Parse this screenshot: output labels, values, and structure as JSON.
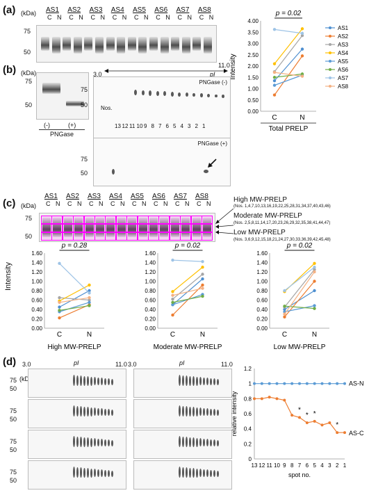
{
  "panels": {
    "a": {
      "label": "(a)",
      "kda_label": "(kDa)",
      "mw_markers": [
        "75",
        "50"
      ],
      "samples": [
        "AS1",
        "AS2",
        "AS3",
        "AS4",
        "AS5",
        "AS6",
        "AS7",
        "AS8"
      ],
      "lane_labels": [
        "C",
        "N"
      ],
      "chart_title": "p = 0.02",
      "chart_xlabel": "Total PRELP",
      "chart_ylabel": "Intensity"
    },
    "b": {
      "label": "(b)",
      "kda_label": "(kDa)",
      "mw_markers": [
        "75",
        "50"
      ],
      "pngase_labels": [
        "(-)",
        "(+)"
      ],
      "pngase_title": "PNGase",
      "pi_label": "pI",
      "pi_range": [
        "3.0",
        "11.0"
      ],
      "top_tag": "PNGase (-)",
      "bottom_tag": "PNGase (+)",
      "nos_label": "Nos.",
      "spot_numbers": [
        "13",
        "12",
        "11",
        "10",
        "9",
        "8",
        "7",
        "6",
        "5",
        "4",
        "3",
        "2",
        "1"
      ]
    },
    "c": {
      "label": "(c)",
      "kda_label": "(kDa)",
      "mw_markers": [
        "75",
        "50"
      ],
      "high_title": "High MW-PRELP",
      "high_nos": "(Nos. 1,4,7,10,13,16,19,22,25,28,31,34,37,40,43,46)",
      "mod_title": "Moderate MW-PRELP",
      "mod_nos": "(Nos. 2,5,8,11,14,17,20,23,26,29,32,35,38,41,44,47)",
      "low_title": "Low MW-PRELP",
      "low_nos": "(Nos. 3,6,9,12,15,18,21,24,27,30,33,36,39,42,45,48)",
      "ylabel": "Intensity",
      "charts": [
        {
          "p": "p = 0.28",
          "xlabel": "High MW-PRELP"
        },
        {
          "p": "p = 0.02",
          "xlabel": "Moderate MW-PRELP"
        },
        {
          "p": "p = 0.02",
          "xlabel": "Low MW-PRELP"
        }
      ]
    },
    "d": {
      "label": "(d)",
      "kda_label": "(kDa)",
      "mw_markers": [
        "75",
        "50"
      ],
      "pi_label": "pI",
      "pi_range": [
        "3.0",
        "11.0"
      ],
      "ylabel": "relative intensity",
      "xlabel": "spot no.",
      "series_n": "AS-N",
      "series_c": "AS-C"
    }
  },
  "colors": {
    "AS1": "#4e8fd0",
    "AS2": "#ed7d31",
    "AS3": "#a5a5a5",
    "AS4": "#ffc000",
    "AS5": "#5b9bd5",
    "AS6": "#70ad47",
    "AS7": "#9dc3e6",
    "AS8": "#f4b183",
    "highlight": "#ff00ff"
  },
  "chart_data": [
    {
      "type": "line",
      "title": "p = 0.02",
      "xlabel": "Total PRELP",
      "ylabel": "Intensity",
      "categories": [
        "C",
        "N"
      ],
      "ylim": [
        0,
        4.0
      ],
      "yticks": [
        "0.00",
        "0.50",
        "1.00",
        "1.50",
        "2.00",
        "2.50",
        "3.00",
        "3.50",
        "4.00"
      ],
      "series": [
        {
          "name": "AS1",
          "values": [
            1.35,
            2.75
          ]
        },
        {
          "name": "AS2",
          "values": [
            0.72,
            2.45
          ]
        },
        {
          "name": "AS3",
          "values": [
            1.75,
            3.35
          ]
        },
        {
          "name": "AS4",
          "values": [
            2.1,
            3.65
          ]
        },
        {
          "name": "AS5",
          "values": [
            1.15,
            1.6
          ]
        },
        {
          "name": "AS6",
          "values": [
            1.5,
            1.65
          ]
        },
        {
          "name": "AS7",
          "values": [
            3.62,
            3.45
          ]
        },
        {
          "name": "AS8",
          "values": [
            1.72,
            1.55
          ]
        }
      ]
    },
    {
      "type": "line",
      "title": "p = 0.28",
      "xlabel": "High MW-PRELP",
      "ylabel": "Intensity",
      "categories": [
        "C",
        "N"
      ],
      "ylim": [
        0,
        1.6
      ],
      "yticks": [
        "0.00",
        "0.20",
        "0.40",
        "0.60",
        "0.80",
        "1.00",
        "1.20",
        "1.40",
        "1.60"
      ],
      "series": [
        {
          "name": "AS1",
          "values": [
            0.45,
            0.8
          ]
        },
        {
          "name": "AS2",
          "values": [
            0.22,
            0.5
          ]
        },
        {
          "name": "AS3",
          "values": [
            0.65,
            0.6
          ]
        },
        {
          "name": "AS4",
          "values": [
            0.58,
            0.92
          ]
        },
        {
          "name": "AS5",
          "values": [
            0.35,
            0.55
          ]
        },
        {
          "name": "AS6",
          "values": [
            0.38,
            0.48
          ]
        },
        {
          "name": "AS7",
          "values": [
            1.38,
            0.75
          ]
        },
        {
          "name": "AS8",
          "values": [
            0.55,
            0.65
          ]
        }
      ]
    },
    {
      "type": "line",
      "title": "p = 0.02",
      "xlabel": "Moderate MW-PRELP",
      "ylabel": "Intensity",
      "categories": [
        "C",
        "N"
      ],
      "ylim": [
        0,
        1.6
      ],
      "yticks": [
        "0.00",
        "0.20",
        "0.40",
        "0.60",
        "0.80",
        "1.00",
        "1.20",
        "1.40",
        "1.60"
      ],
      "series": [
        {
          "name": "AS1",
          "values": [
            0.5,
            1.05
          ]
        },
        {
          "name": "AS2",
          "values": [
            0.28,
            0.92
          ]
        },
        {
          "name": "AS3",
          "values": [
            0.62,
            1.15
          ]
        },
        {
          "name": "AS4",
          "values": [
            0.78,
            1.3
          ]
        },
        {
          "name": "AS5",
          "values": [
            0.5,
            0.72
          ]
        },
        {
          "name": "AS6",
          "values": [
            0.55,
            0.68
          ]
        },
        {
          "name": "AS7",
          "values": [
            1.45,
            1.42
          ]
        },
        {
          "name": "AS8",
          "values": [
            0.7,
            0.85
          ]
        }
      ]
    },
    {
      "type": "line",
      "title": "p = 0.02",
      "xlabel": "Low MW-PRELP",
      "ylabel": "Intensity",
      "categories": [
        "C",
        "N"
      ],
      "ylim": [
        0,
        1.6
      ],
      "yticks": [
        "0.00",
        "0.20",
        "0.40",
        "0.60",
        "0.80",
        "1.00",
        "1.20",
        "1.40",
        "1.60"
      ],
      "series": [
        {
          "name": "AS1",
          "values": [
            0.4,
            0.8
          ]
        },
        {
          "name": "AS2",
          "values": [
            0.24,
            1.0
          ]
        },
        {
          "name": "AS3",
          "values": [
            0.45,
            1.25
          ]
        },
        {
          "name": "AS4",
          "values": [
            0.78,
            1.38
          ]
        },
        {
          "name": "AS5",
          "values": [
            0.35,
            0.48
          ]
        },
        {
          "name": "AS6",
          "values": [
            0.47,
            0.42
          ]
        },
        {
          "name": "AS7",
          "values": [
            0.8,
            1.3
          ]
        },
        {
          "name": "AS8",
          "values": [
            0.3,
            1.2
          ]
        }
      ]
    },
    {
      "type": "line",
      "xlabel": "spot no.",
      "ylabel": "relative intensity",
      "categories": [
        "13",
        "12",
        "11",
        "10",
        "9",
        "8",
        "7",
        "6",
        "5",
        "4",
        "3",
        "2",
        "1"
      ],
      "ylim": [
        0,
        1.2
      ],
      "yticks": [
        "0",
        "0.2",
        "0.4",
        "0.6",
        "0.8",
        "1",
        "1.2"
      ],
      "series": [
        {
          "name": "AS-N",
          "values": [
            1,
            1,
            1,
            1,
            1,
            1,
            1,
            1,
            1,
            1,
            1,
            1,
            1
          ]
        },
        {
          "name": "AS-C",
          "values": [
            0.8,
            0.8,
            0.82,
            0.8,
            0.78,
            0.58,
            0.55,
            0.48,
            0.5,
            0.45,
            0.48,
            0.35,
            0.35
          ]
        }
      ],
      "annotations": [
        "*",
        "*",
        "*",
        "*"
      ]
    }
  ]
}
